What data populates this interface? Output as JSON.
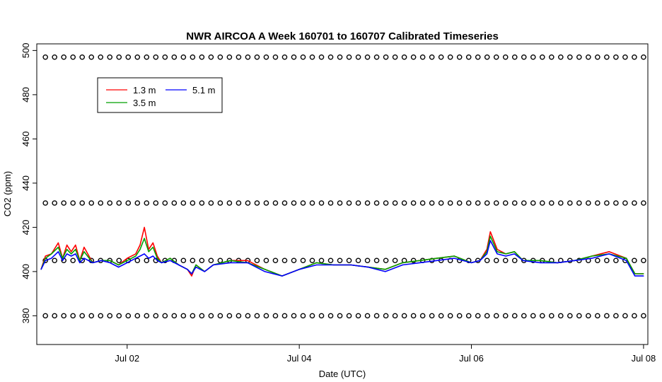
{
  "chart_data": {
    "type": "line",
    "title": "NWR AIRCOA A  Week 160701 to 160707  Calibrated Timeseries",
    "xlabel": "Date (UTC)",
    "ylabel": "CO2 (ppm)",
    "x_range_days": [
      -0.05,
      7.05
    ],
    "x_origin": "Jul 01",
    "ylim": [
      367,
      503
    ],
    "yticks": [
      380,
      400,
      420,
      440,
      460,
      480,
      500
    ],
    "xticks": [
      {
        "day": 1,
        "label": "Jul 02"
      },
      {
        "day": 3,
        "label": "Jul 04"
      },
      {
        "day": 5,
        "label": "Jul 06"
      },
      {
        "day": 7,
        "label": "Jul 08"
      }
    ],
    "legend": {
      "placement": "top-left",
      "entries": [
        {
          "name": "1.3 m",
          "color": "#ff0000"
        },
        {
          "name": "3.5 m",
          "color": "#00a000"
        },
        {
          "name": "5.1 m",
          "color": "#0000ff"
        }
      ]
    },
    "reference_levels_ppm": [
      380,
      405,
      431,
      497
    ],
    "series": [
      {
        "name": "1.3 m",
        "color": "#ff0000",
        "x": [
          0,
          0.05,
          0.12,
          0.2,
          0.25,
          0.3,
          0.35,
          0.4,
          0.45,
          0.5,
          0.6,
          0.7,
          0.8,
          0.9,
          1.0,
          1.1,
          1.15,
          1.2,
          1.25,
          1.3,
          1.35,
          1.4,
          1.5,
          1.6,
          1.7,
          1.75,
          1.8,
          1.9,
          2.0,
          2.2,
          2.4,
          2.6,
          2.8,
          3.0,
          3.2,
          3.4,
          3.6,
          3.8,
          4.0,
          4.2,
          4.4,
          4.6,
          4.8,
          5.0,
          5.1,
          5.18,
          5.22,
          5.3,
          5.4,
          5.5,
          5.6,
          5.8,
          6.0,
          6.2,
          6.4,
          6.6,
          6.8,
          6.9,
          7.0
        ],
        "y": [
          401,
          407,
          408,
          413,
          406,
          412,
          409,
          412,
          405,
          411,
          404,
          405,
          405,
          403,
          406,
          408,
          412,
          420,
          410,
          413,
          407,
          404,
          406,
          403,
          401,
          398,
          403,
          400,
          403,
          405,
          405,
          401,
          398,
          401,
          404,
          403,
          403,
          402,
          401,
          404,
          405,
          406,
          407,
          404,
          405,
          410,
          418,
          410,
          408,
          409,
          405,
          405,
          404,
          405,
          407,
          409,
          406,
          399,
          399
        ]
      },
      {
        "name": "3.5 m",
        "color": "#00a000",
        "x": [
          0,
          0.05,
          0.12,
          0.2,
          0.25,
          0.3,
          0.35,
          0.4,
          0.45,
          0.5,
          0.6,
          0.7,
          0.8,
          0.9,
          1.0,
          1.1,
          1.15,
          1.2,
          1.25,
          1.3,
          1.35,
          1.4,
          1.5,
          1.6,
          1.7,
          1.75,
          1.8,
          1.9,
          2.0,
          2.2,
          2.4,
          2.6,
          2.8,
          3.0,
          3.2,
          3.4,
          3.6,
          3.8,
          4.0,
          4.2,
          4.4,
          4.6,
          4.8,
          5.0,
          5.1,
          5.18,
          5.22,
          5.3,
          5.4,
          5.5,
          5.6,
          5.8,
          6.0,
          6.2,
          6.4,
          6.6,
          6.8,
          6.9,
          7.0
        ],
        "y": [
          401,
          406,
          408,
          411,
          406,
          410,
          408,
          410,
          405,
          409,
          404,
          405,
          405,
          403,
          405,
          407,
          410,
          415,
          409,
          411,
          406,
          404,
          406,
          403,
          401,
          399,
          403,
          400,
          403,
          405,
          404,
          401,
          398,
          401,
          404,
          403,
          403,
          402,
          401,
          404,
          405,
          406,
          407,
          404,
          405,
          409,
          416,
          409,
          408,
          409,
          405,
          405,
          404,
          405,
          407,
          408,
          406,
          399,
          399
        ]
      },
      {
        "name": "5.1 m",
        "color": "#0000ff",
        "x": [
          0,
          0.05,
          0.12,
          0.2,
          0.25,
          0.3,
          0.35,
          0.4,
          0.45,
          0.5,
          0.6,
          0.7,
          0.8,
          0.9,
          1.0,
          1.1,
          1.15,
          1.2,
          1.25,
          1.3,
          1.35,
          1.4,
          1.5,
          1.6,
          1.7,
          1.75,
          1.8,
          1.9,
          2.0,
          2.2,
          2.4,
          2.6,
          2.8,
          3.0,
          3.2,
          3.4,
          3.6,
          3.8,
          4.0,
          4.2,
          4.4,
          4.6,
          4.8,
          5.0,
          5.1,
          5.18,
          5.22,
          5.3,
          5.4,
          5.5,
          5.6,
          5.8,
          6.0,
          6.2,
          6.4,
          6.6,
          6.8,
          6.9,
          7.0
        ],
        "y": [
          401,
          405,
          406,
          409,
          405,
          408,
          407,
          408,
          404,
          406,
          404,
          405,
          404,
          402,
          404,
          406,
          407,
          408,
          406,
          407,
          405,
          404,
          405,
          403,
          401,
          399,
          402,
          400,
          403,
          404,
          404,
          400,
          398,
          401,
          403,
          403,
          403,
          402,
          400,
          403,
          404,
          405,
          406,
          404,
          405,
          408,
          414,
          408,
          407,
          408,
          405,
          404,
          404,
          405,
          406,
          408,
          405,
          398,
          398
        ]
      }
    ]
  }
}
